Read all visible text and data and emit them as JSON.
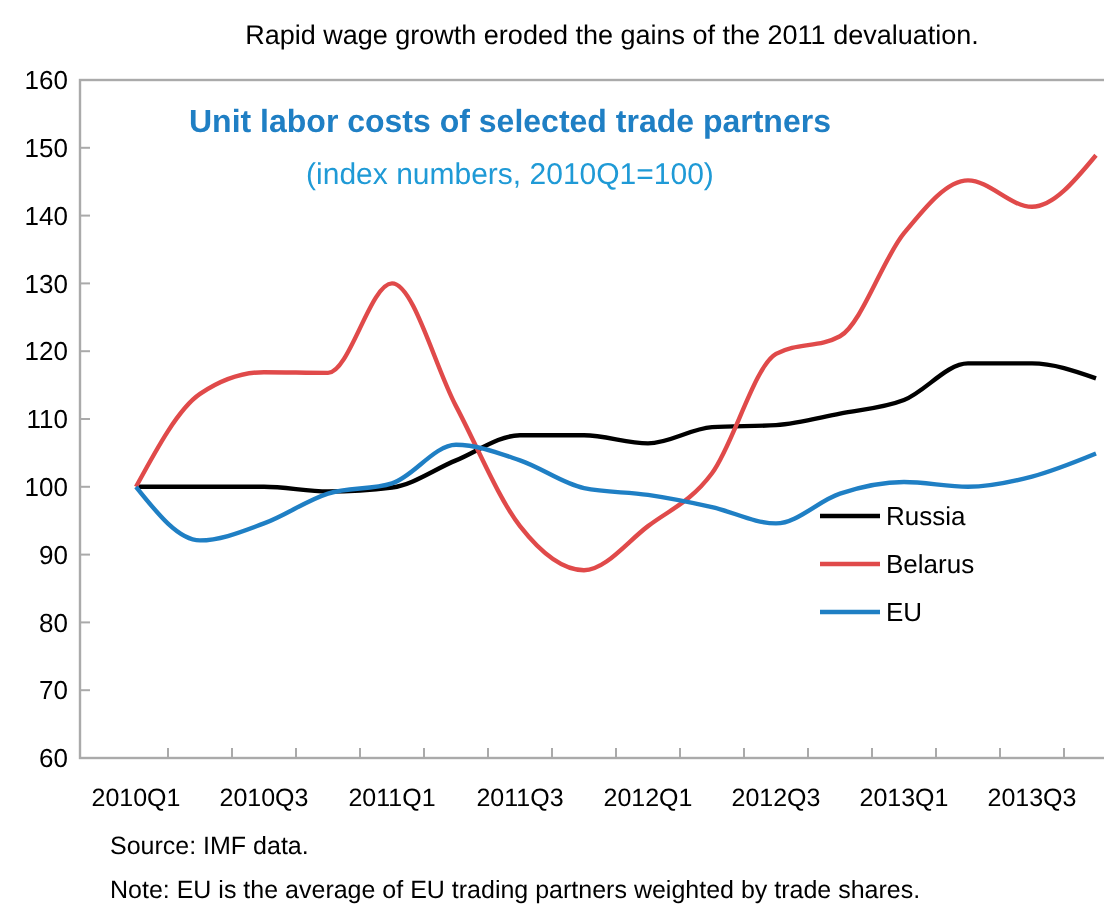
{
  "chart_data": {
    "type": "line",
    "title": "Rapid wage growth eroded the gains of the 2011 devaluation.",
    "subtitle": "Unit labor costs of selected trade partners",
    "annotations": [
      "(index numbers, 2010Q1=100)",
      "Source: IMF data.",
      "Note: EU is the average of EU trading partners weighted by trade shares."
    ],
    "categories": [
      "2010Q1",
      null,
      "2010Q3",
      null,
      "2011Q1",
      null,
      "2011Q3",
      null,
      "2012Q1",
      null,
      "2012Q3",
      null,
      "2013Q1",
      null,
      "2013Q3",
      null
    ],
    "series": [
      {
        "name": "Russia",
        "color": "#000000",
        "values": [
          100,
          100,
          100,
          99.3,
          99.9,
          103.9,
          107.6,
          107.6,
          106.4,
          108.8,
          109.1,
          110.8,
          112.8,
          118.2,
          118.2,
          116
        ]
      },
      {
        "name": "Belarus",
        "color": "#e04a4a",
        "values": [
          100,
          113.7,
          116.9,
          116.8,
          130,
          111.9,
          94.2,
          87.7,
          94.2,
          102,
          119.6,
          122.2,
          137.4,
          145.2,
          141.3,
          148.9
        ]
      },
      {
        "name": "EU",
        "color": "#1f7fc4",
        "values": [
          100,
          92.1,
          94.6,
          99,
          100.5,
          106.2,
          103.9,
          99.8,
          98.8,
          97,
          94.6,
          99,
          100.7,
          100,
          101.5,
          104.9
        ]
      }
    ],
    "ylim": [
      60,
      160
    ],
    "yticks": [
      60,
      70,
      80,
      90,
      100,
      110,
      120,
      130,
      140,
      150,
      160
    ],
    "grid": false,
    "legend": "right",
    "marker": "none",
    "line_style": "solid"
  }
}
